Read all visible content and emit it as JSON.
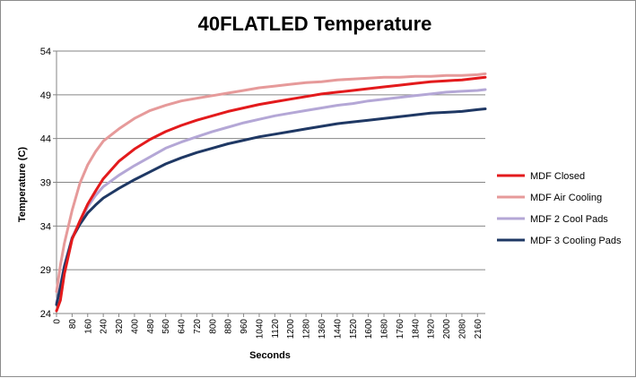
{
  "chart_data": {
    "type": "line",
    "title": "40FLATLED Temperature",
    "xlabel": "Seconds",
    "ylabel": "Temperature (C)",
    "xlim": [
      0,
      2200
    ],
    "ylim": [
      24,
      54
    ],
    "yticks": [
      24,
      29,
      34,
      39,
      44,
      49,
      54
    ],
    "xticks": [
      0,
      80,
      160,
      240,
      320,
      400,
      480,
      560,
      640,
      720,
      800,
      880,
      960,
      1040,
      1120,
      1200,
      1280,
      1360,
      1440,
      1520,
      1600,
      1680,
      1760,
      1840,
      1920,
      2000,
      2080,
      2160
    ],
    "grid": "horizontal",
    "legend_position": "right",
    "x": [
      0,
      20,
      40,
      80,
      120,
      160,
      200,
      240,
      320,
      400,
      480,
      560,
      640,
      720,
      800,
      880,
      960,
      1040,
      1120,
      1200,
      1280,
      1360,
      1440,
      1520,
      1600,
      1680,
      1760,
      1840,
      1920,
      2000,
      2080,
      2160,
      2200
    ],
    "series": [
      {
        "name": "MDF Closed",
        "color": "#e31a1c",
        "values": [
          24.3,
          25.5,
          28.5,
          32.5,
          34.6,
          36.5,
          38.0,
          39.4,
          41.4,
          42.8,
          43.9,
          44.8,
          45.5,
          46.1,
          46.6,
          47.1,
          47.5,
          47.9,
          48.2,
          48.5,
          48.8,
          49.1,
          49.3,
          49.5,
          49.7,
          49.9,
          50.1,
          50.3,
          50.5,
          50.6,
          50.7,
          50.9,
          51.0
        ]
      },
      {
        "name": "MDF Air Cooling",
        "color": "#e69a9a",
        "values": [
          26.5,
          29.5,
          32.0,
          35.8,
          38.9,
          41.0,
          42.5,
          43.7,
          45.1,
          46.3,
          47.2,
          47.8,
          48.3,
          48.6,
          48.9,
          49.2,
          49.5,
          49.8,
          50.0,
          50.2,
          50.4,
          50.5,
          50.7,
          50.8,
          50.9,
          51.0,
          51.0,
          51.1,
          51.1,
          51.2,
          51.2,
          51.3,
          51.4
        ]
      },
      {
        "name": "MDF 2 Cool Pads",
        "color": "#b4a7d6",
        "values": [
          25.2,
          27.2,
          29.5,
          32.7,
          34.5,
          36.2,
          37.5,
          38.5,
          39.8,
          40.9,
          41.9,
          42.9,
          43.6,
          44.2,
          44.8,
          45.3,
          45.8,
          46.2,
          46.6,
          46.9,
          47.2,
          47.5,
          47.8,
          48.0,
          48.3,
          48.5,
          48.7,
          48.9,
          49.1,
          49.3,
          49.4,
          49.5,
          49.6
        ]
      },
      {
        "name": "MDF 3 Cooling Pads",
        "color": "#1f3864",
        "values": [
          25.0,
          27.0,
          29.3,
          32.6,
          34.2,
          35.5,
          36.4,
          37.2,
          38.3,
          39.3,
          40.2,
          41.1,
          41.8,
          42.4,
          42.9,
          43.4,
          43.8,
          44.2,
          44.5,
          44.8,
          45.1,
          45.4,
          45.7,
          45.9,
          46.1,
          46.3,
          46.5,
          46.7,
          46.9,
          47.0,
          47.1,
          47.3,
          47.4
        ]
      }
    ]
  }
}
